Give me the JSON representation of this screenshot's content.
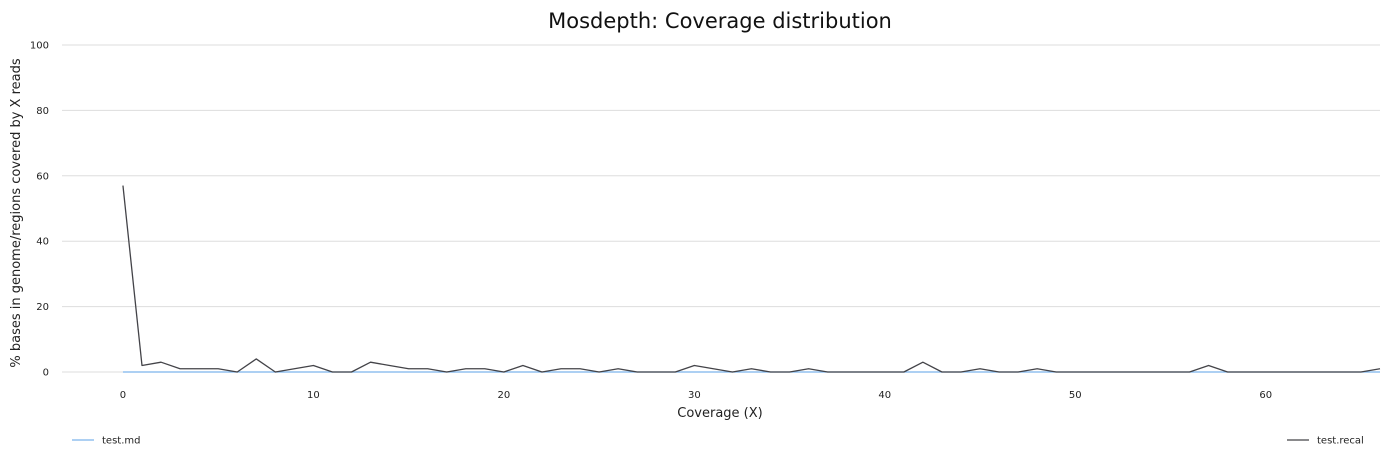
{
  "chart_data": {
    "type": "line",
    "title": "Mosdepth: Coverage distribution",
    "xlabel": "Coverage (X)",
    "ylabel": "% bases in genome/regions covered by X reads",
    "xlim": [
      -3.2,
      66
    ],
    "ylim": [
      0,
      100
    ],
    "x_ticks": [
      0,
      10,
      20,
      30,
      40,
      50,
      60
    ],
    "y_ticks": [
      0,
      20,
      40,
      60,
      80,
      100
    ],
    "grid": true,
    "legend_position": "bottom",
    "series": [
      {
        "name": "test.md",
        "color": "#7cb5ec",
        "x": [
          0,
          66
        ],
        "y": [
          0,
          0
        ]
      },
      {
        "name": "test.recal",
        "color": "#434348",
        "x": [
          0,
          1,
          2,
          3,
          4,
          5,
          6,
          7,
          8,
          9,
          10,
          11,
          12,
          13,
          14,
          15,
          16,
          17,
          18,
          19,
          20,
          21,
          22,
          23,
          24,
          25,
          26,
          27,
          28,
          29,
          30,
          31,
          32,
          33,
          34,
          35,
          36,
          37,
          38,
          39,
          40,
          41,
          42,
          43,
          44,
          45,
          46,
          47,
          48,
          49,
          50,
          51,
          52,
          53,
          54,
          55,
          56,
          57,
          58,
          59,
          60,
          61,
          62,
          63,
          64,
          65,
          66
        ],
        "y": [
          57,
          2,
          3,
          1,
          1,
          1,
          0,
          4,
          0,
          1,
          2,
          0,
          0,
          3,
          2,
          1,
          1,
          0,
          1,
          1,
          0,
          2,
          0,
          1,
          1,
          0,
          1,
          0,
          0,
          0,
          2,
          1,
          0,
          1,
          0,
          0,
          1,
          0,
          0,
          0,
          0,
          0,
          3,
          0,
          0,
          1,
          0,
          0,
          1,
          0,
          0,
          0,
          0,
          0,
          0,
          0,
          0,
          2,
          0,
          0,
          0,
          0,
          0,
          0,
          0,
          0,
          1
        ]
      }
    ]
  }
}
